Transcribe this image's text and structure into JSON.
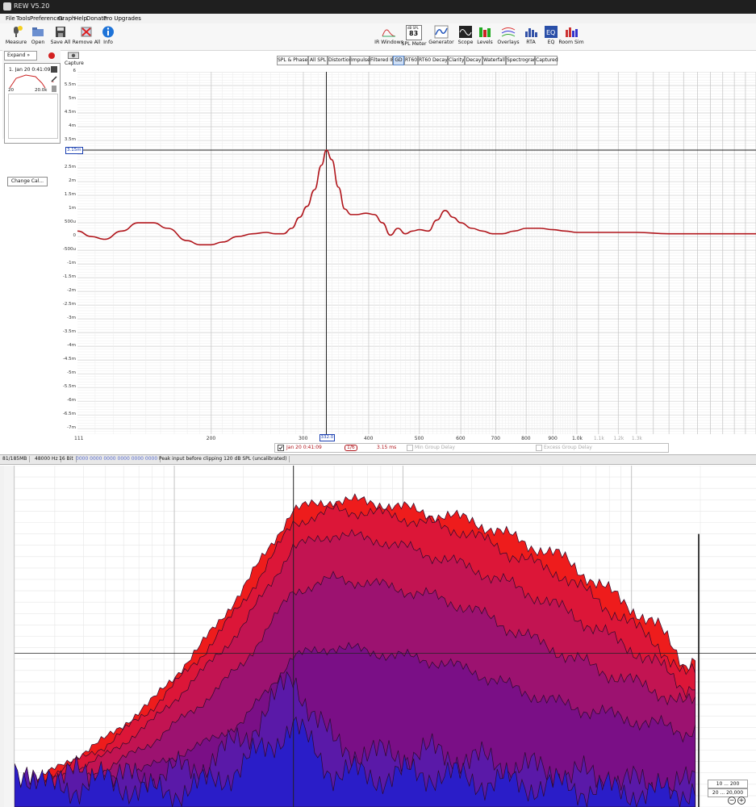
{
  "window": {
    "title": "REW V5.20"
  },
  "menu": [
    "File",
    "Tools",
    "Preferences",
    "Graph",
    "Help",
    "Donate",
    "Pro Upgrades"
  ],
  "toolbar_left": [
    {
      "label": "Measure",
      "icon": "microphone-icon"
    },
    {
      "label": "Open",
      "icon": "folder-open-icon"
    },
    {
      "label": "Save All",
      "icon": "save-icon"
    },
    {
      "label": "Remove All",
      "icon": "remove-all-icon"
    },
    {
      "label": "Info",
      "icon": "info-icon"
    }
  ],
  "toolbar_right": [
    {
      "label": "IR Windows",
      "icon": "ir-windows-icon"
    },
    {
      "label": "SPL Meter",
      "icon": "spl-meter-icon",
      "top_text": "dB SPL",
      "value": "83"
    },
    {
      "label": "Generator",
      "icon": "generator-icon"
    },
    {
      "label": "Scope",
      "icon": "scope-icon"
    },
    {
      "label": "Levels",
      "icon": "levels-icon"
    },
    {
      "label": "Overlays",
      "icon": "overlays-icon"
    },
    {
      "label": "RTA",
      "icon": "rta-icon"
    },
    {
      "label": "EQ",
      "icon": "eq-icon"
    },
    {
      "label": "Room Sim",
      "icon": "room-sim-icon"
    }
  ],
  "left_panel": {
    "expand_label": "Expand",
    "measurement": {
      "index": "1",
      "name": "Jan 20 0:41:09",
      "range_low": "20",
      "range_high": "20.0k"
    },
    "change_cal_label": "Change Cal..."
  },
  "capture_label": "Capture",
  "graph_tabs": [
    "SPL & Phase",
    "All SPL",
    "Distortion",
    "Impulse",
    "Filtered IR",
    "GD",
    "RT60",
    "RT60 Decay",
    "Clarity",
    "Decay",
    "Waterfall",
    "Spectrogram",
    "Captured"
  ],
  "active_tab": "GD",
  "chart_data": [
    {
      "type": "line",
      "title": "",
      "xlabel": "",
      "ylabel": "",
      "x_scale": "log",
      "xlim": [
        111,
        2200
      ],
      "ylim": [
        -7.2,
        6
      ],
      "grid": true,
      "y_tick_labels": [
        "6",
        "5.5m",
        "5m",
        "4.5m",
        "4m",
        "3.5m",
        "3m",
        "2.5m",
        "2m",
        "1.5m",
        "1m",
        "500u",
        "0",
        "-500u",
        "-1m",
        "-1.5m",
        "-2m",
        "-2.5m",
        "-3m",
        "-3.5m",
        "-4m",
        "-4.5m",
        "-5m",
        "-5.5m",
        "-6m",
        "-6.5m",
        "-7m"
      ],
      "x_tick_labels": [
        "111",
        "200",
        "300",
        "400",
        "500",
        "600",
        "700",
        "800",
        "900",
        "1.0k",
        "1.1k",
        "1.2k",
        "1.3k"
      ],
      "cursor": {
        "x": 332.0,
        "x_label": "332.0",
        "y_label": "3.15m"
      },
      "series": [
        {
          "name": "Jan 20 0:41:09",
          "color": "#b0151b",
          "x": [
            111,
            118,
            125,
            135,
            145,
            155,
            165,
            180,
            190,
            200,
            210,
            225,
            240,
            255,
            265,
            275,
            285,
            295,
            305,
            315,
            325,
            332,
            340,
            350,
            360,
            370,
            380,
            395,
            410,
            425,
            440,
            455,
            470,
            485,
            500,
            520,
            540,
            560,
            580,
            600,
            630,
            660,
            690,
            720,
            760,
            800,
            850,
            900,
            950,
            1000,
            1100,
            1200,
            1300,
            1500,
            1800,
            2200
          ],
          "y": [
            0.2,
            0.0,
            -0.1,
            0.2,
            0.5,
            0.5,
            0.3,
            -0.15,
            -0.3,
            -0.3,
            -0.2,
            0.0,
            0.1,
            0.15,
            0.1,
            0.1,
            0.3,
            0.7,
            1.1,
            1.7,
            2.6,
            3.15,
            2.8,
            1.8,
            1.0,
            0.8,
            0.8,
            0.85,
            0.8,
            0.5,
            0.05,
            0.3,
            0.1,
            0.2,
            0.25,
            0.2,
            0.6,
            0.95,
            0.7,
            0.5,
            0.3,
            0.2,
            0.1,
            0.1,
            0.2,
            0.3,
            0.3,
            0.25,
            0.2,
            0.15,
            0.15,
            0.15,
            0.15,
            0.1,
            0.1,
            0.1
          ]
        }
      ]
    },
    {
      "type": "area",
      "title": "",
      "xlabel": "",
      "ylabel": "",
      "x_scale": "log",
      "xlim": [
        20,
        20000
      ],
      "grid": true,
      "cursor": {
        "x": 332.0
      },
      "series": [
        {
          "name": "slice-1",
          "color": "#ee1c1c",
          "x": [
            20,
            30,
            50,
            80,
            130,
            200,
            330,
            500,
            800,
            1300,
            2000,
            3000,
            5000,
            8000,
            13000,
            17000,
            19000
          ],
          "y": [
            0.05,
            0.11,
            0.2,
            0.31,
            0.47,
            0.64,
            0.87,
            0.9,
            0.89,
            0.86,
            0.84,
            0.79,
            0.73,
            0.63,
            0.53,
            0.42,
            0.44
          ]
        },
        {
          "name": "slice-2",
          "color": "#dc1638",
          "x": [
            20,
            30,
            50,
            80,
            130,
            200,
            330,
            500,
            800,
            1300,
            2000,
            3000,
            5000,
            8000,
            13000,
            17000,
            19000
          ],
          "y": [
            0.04,
            0.1,
            0.18,
            0.29,
            0.44,
            0.6,
            0.83,
            0.87,
            0.86,
            0.83,
            0.8,
            0.74,
            0.68,
            0.58,
            0.48,
            0.38,
            0.4
          ]
        },
        {
          "name": "slice-3",
          "color": "#c21452",
          "x": [
            20,
            30,
            50,
            80,
            130,
            200,
            330,
            500,
            800,
            1300,
            2000,
            3000,
            5000,
            8000,
            13000,
            17000,
            19000
          ],
          "y": [
            0.03,
            0.08,
            0.15,
            0.25,
            0.39,
            0.53,
            0.76,
            0.8,
            0.78,
            0.74,
            0.7,
            0.65,
            0.58,
            0.5,
            0.42,
            0.35,
            0.36
          ]
        },
        {
          "name": "slice-4",
          "color": "#9c1270",
          "x": [
            20,
            30,
            50,
            80,
            130,
            200,
            330,
            500,
            800,
            1300,
            2000,
            3000,
            5000,
            8000,
            13000,
            17000,
            19000
          ],
          "y": [
            0.02,
            0.06,
            0.11,
            0.19,
            0.3,
            0.42,
            0.63,
            0.67,
            0.65,
            0.62,
            0.58,
            0.52,
            0.45,
            0.39,
            0.34,
            0.3,
            0.31
          ]
        },
        {
          "name": "slice-5",
          "color": "#7a0f86",
          "x": [
            20,
            30,
            50,
            80,
            130,
            200,
            330,
            500,
            800,
            1300,
            2000,
            3000,
            5000,
            8000,
            13000,
            17000,
            19000
          ],
          "y": [
            0.02,
            0.04,
            0.08,
            0.12,
            0.18,
            0.25,
            0.44,
            0.47,
            0.45,
            0.43,
            0.4,
            0.35,
            0.3,
            0.27,
            0.24,
            0.22,
            0.23
          ]
        },
        {
          "name": "slice-6",
          "color": "#5a19a8",
          "x": [
            20,
            30,
            50,
            80,
            130,
            200,
            330,
            500,
            800,
            1300,
            2000,
            3000,
            5000,
            8000,
            13000,
            17000,
            19000
          ],
          "y": [
            0.05,
            0.1,
            0.08,
            0.09,
            0.12,
            0.2,
            0.38,
            0.18,
            0.15,
            0.16,
            0.14,
            0.12,
            0.1,
            0.08,
            0.06,
            0.06,
            0.08
          ]
        },
        {
          "name": "slice-7",
          "color": "#2a1dc8",
          "x": [
            20,
            30,
            50,
            80,
            130,
            200,
            330,
            500,
            800,
            1300,
            2000,
            3000,
            5000,
            8000,
            13000,
            17000,
            19000
          ],
          "y": [
            0.12,
            0.05,
            0.08,
            0.04,
            0.06,
            0.12,
            0.24,
            0.1,
            0.09,
            0.1,
            0.08,
            0.07,
            0.06,
            0.05,
            0.04,
            0.05,
            0.06
          ]
        }
      ]
    }
  ],
  "legend": {
    "name": "Jan 20 0:41:09",
    "smoothing": "1/6",
    "value": "3.15 ms",
    "min_group_delay": "Min Group Delay",
    "excess_group_delay": "Excess Group Delay"
  },
  "status": {
    "memory": "81/185MB",
    "rate": "48000 Hz",
    "bits": "16 Bit",
    "meter": "0000 0000 0000 0000 0000 0000",
    "peak": "Peak input before clipping 120 dB SPL (uncalibrated)"
  },
  "waterfall_buttons": {
    "range1": "10 ... 200",
    "range2": "20 ... 20,000"
  },
  "colors": {
    "accent": "#5b87c5",
    "gd_line": "#b0151b",
    "cursor": "#222222"
  }
}
